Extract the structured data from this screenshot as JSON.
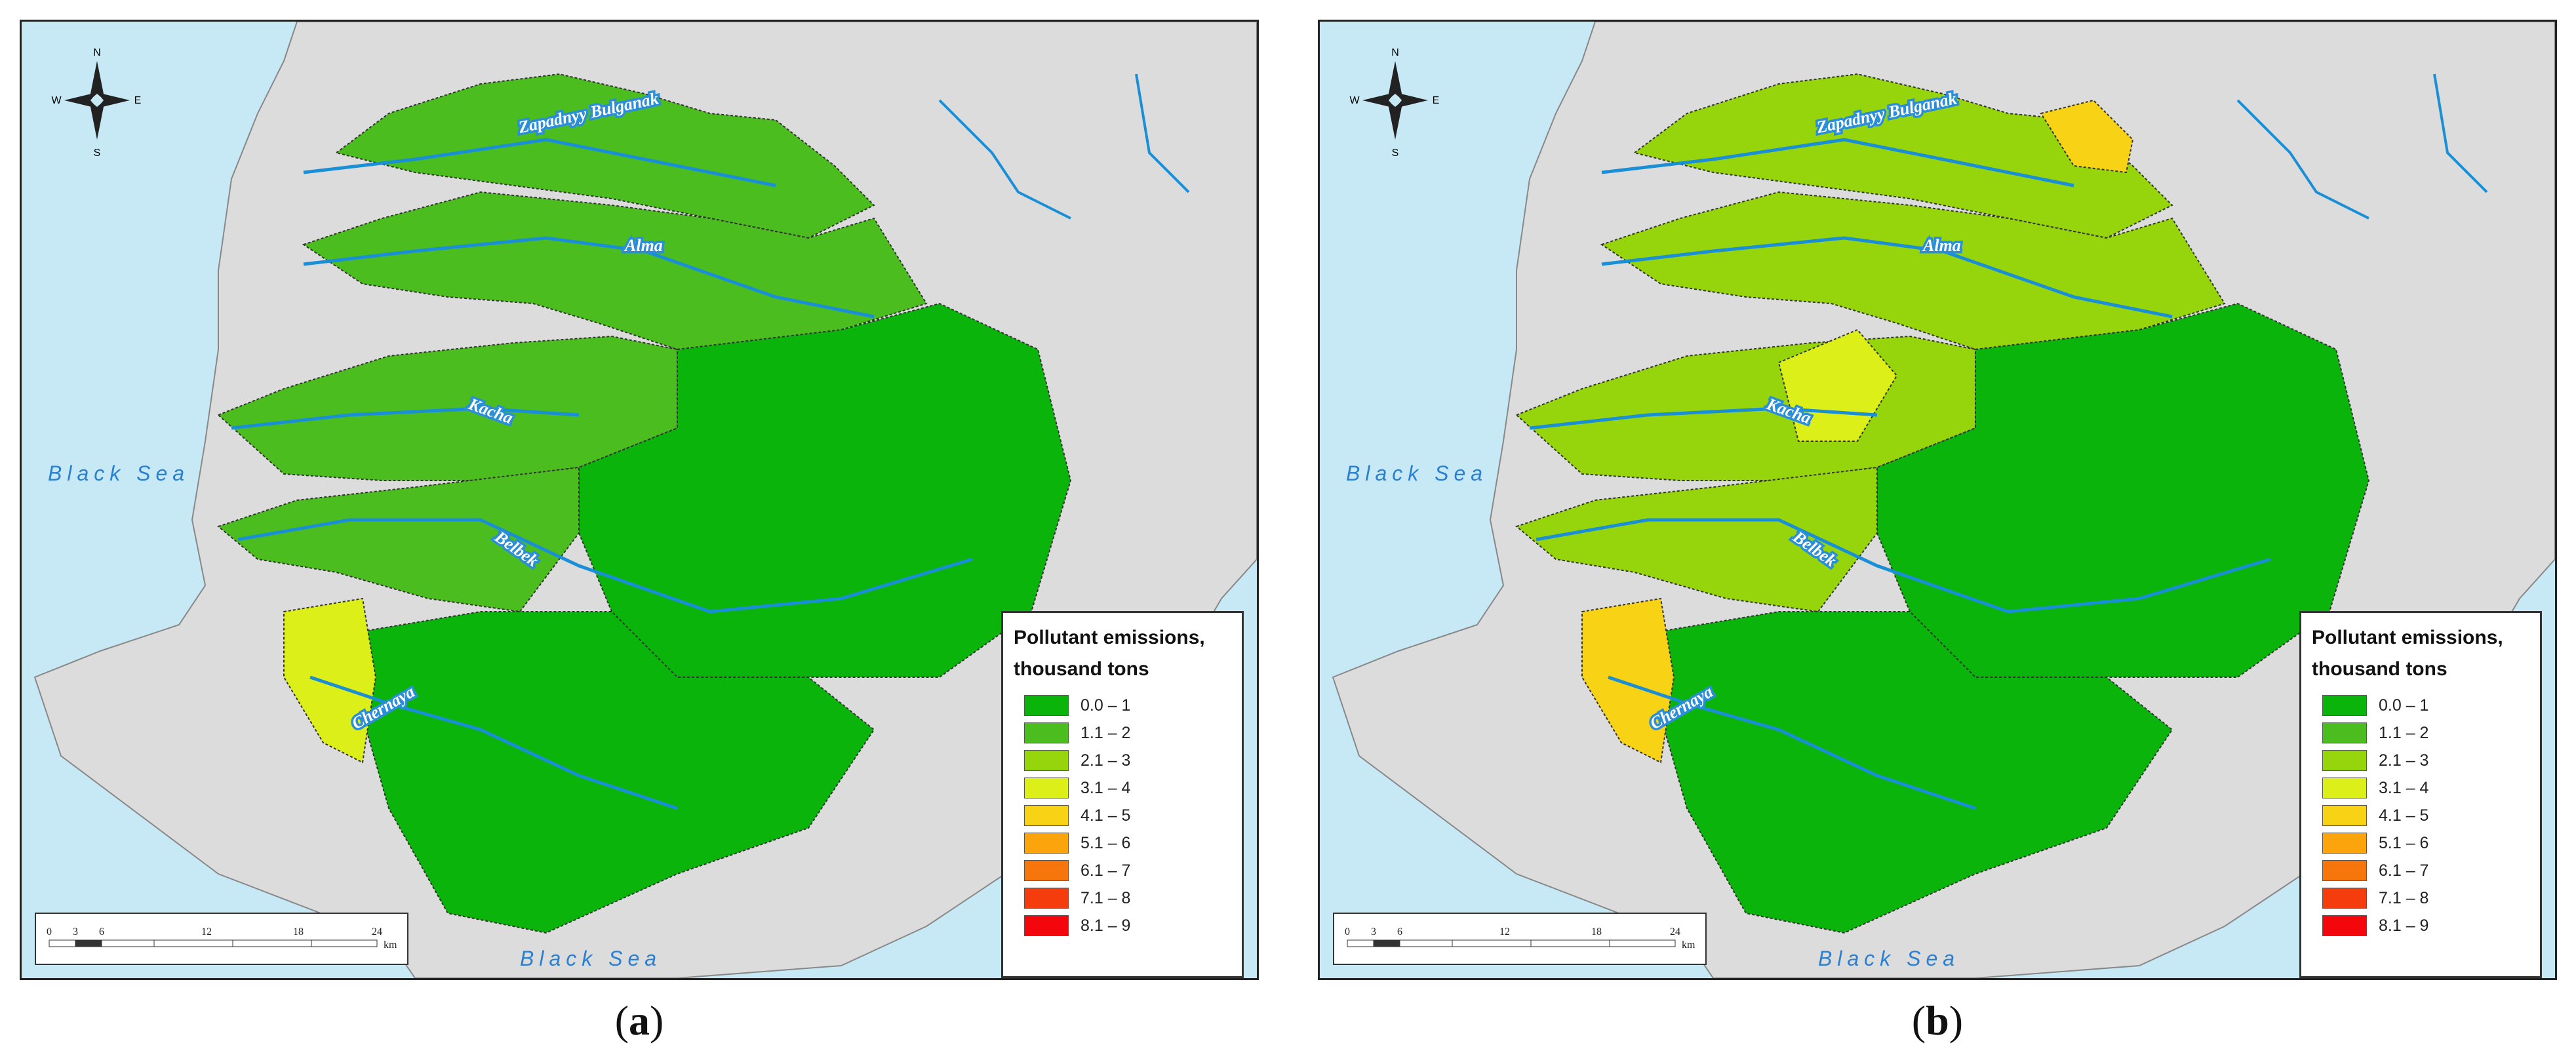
{
  "legend": {
    "title_line1": "Pollutant emissions,",
    "title_line2": "thousand tons",
    "items": [
      {
        "label": "0.0 – 1",
        "color": "#0ab40a"
      },
      {
        "label": "1.1 – 2",
        "color": "#4cbd1f"
      },
      {
        "label": "2.1 – 3",
        "color": "#96d50c"
      },
      {
        "label": "3.1 – 4",
        "color": "#dcef19"
      },
      {
        "label": "4.1 – 5",
        "color": "#f7d215"
      },
      {
        "label": "5.1 – 6",
        "color": "#fba40c"
      },
      {
        "label": "6.1 – 7",
        "color": "#f7760c"
      },
      {
        "label": "7.1 – 8",
        "color": "#f53c0d"
      },
      {
        "label": "8.1 – 9",
        "color": "#f3060c"
      }
    ]
  },
  "map_labels": {
    "sea_west": "Black Sea",
    "sea_south": "Black Sea",
    "rivers": [
      "Zapadnyy Bulganak",
      "Alma",
      "Kacha",
      "Belbek",
      "Chernaya"
    ],
    "compass": {
      "n": "N",
      "s": "S",
      "e": "E",
      "w": "W"
    },
    "scale": {
      "ticks": [
        "0",
        "3",
        "6",
        "12",
        "18",
        "24"
      ],
      "unit": "km"
    }
  },
  "panels": [
    {
      "id": "a",
      "caption": "a"
    },
    {
      "id": "b",
      "caption": "b"
    }
  ],
  "colors": {
    "sea": "#c7e8f5",
    "land": "#dcdcdc",
    "river": "#1a8fd6"
  }
}
